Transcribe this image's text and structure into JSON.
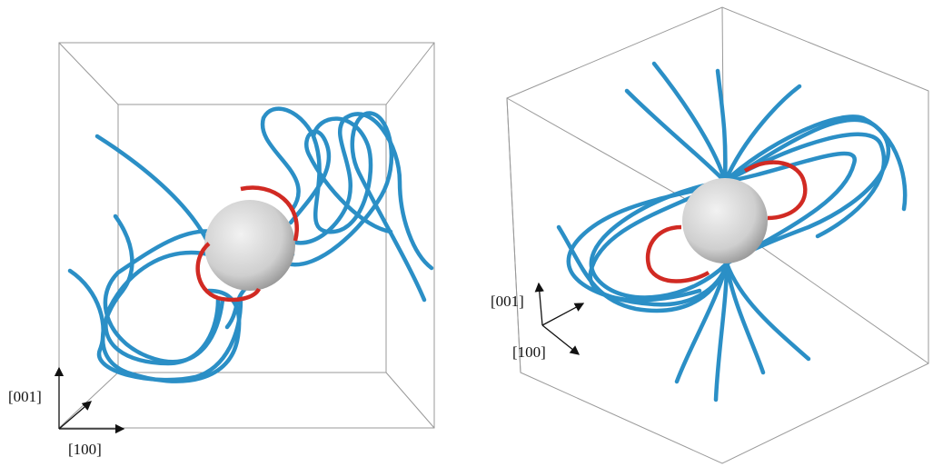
{
  "panels": [
    {
      "axis_labels": [
        "[001]",
        "[100]"
      ]
    },
    {
      "axis_labels": [
        "[001]",
        "[100]"
      ]
    }
  ]
}
